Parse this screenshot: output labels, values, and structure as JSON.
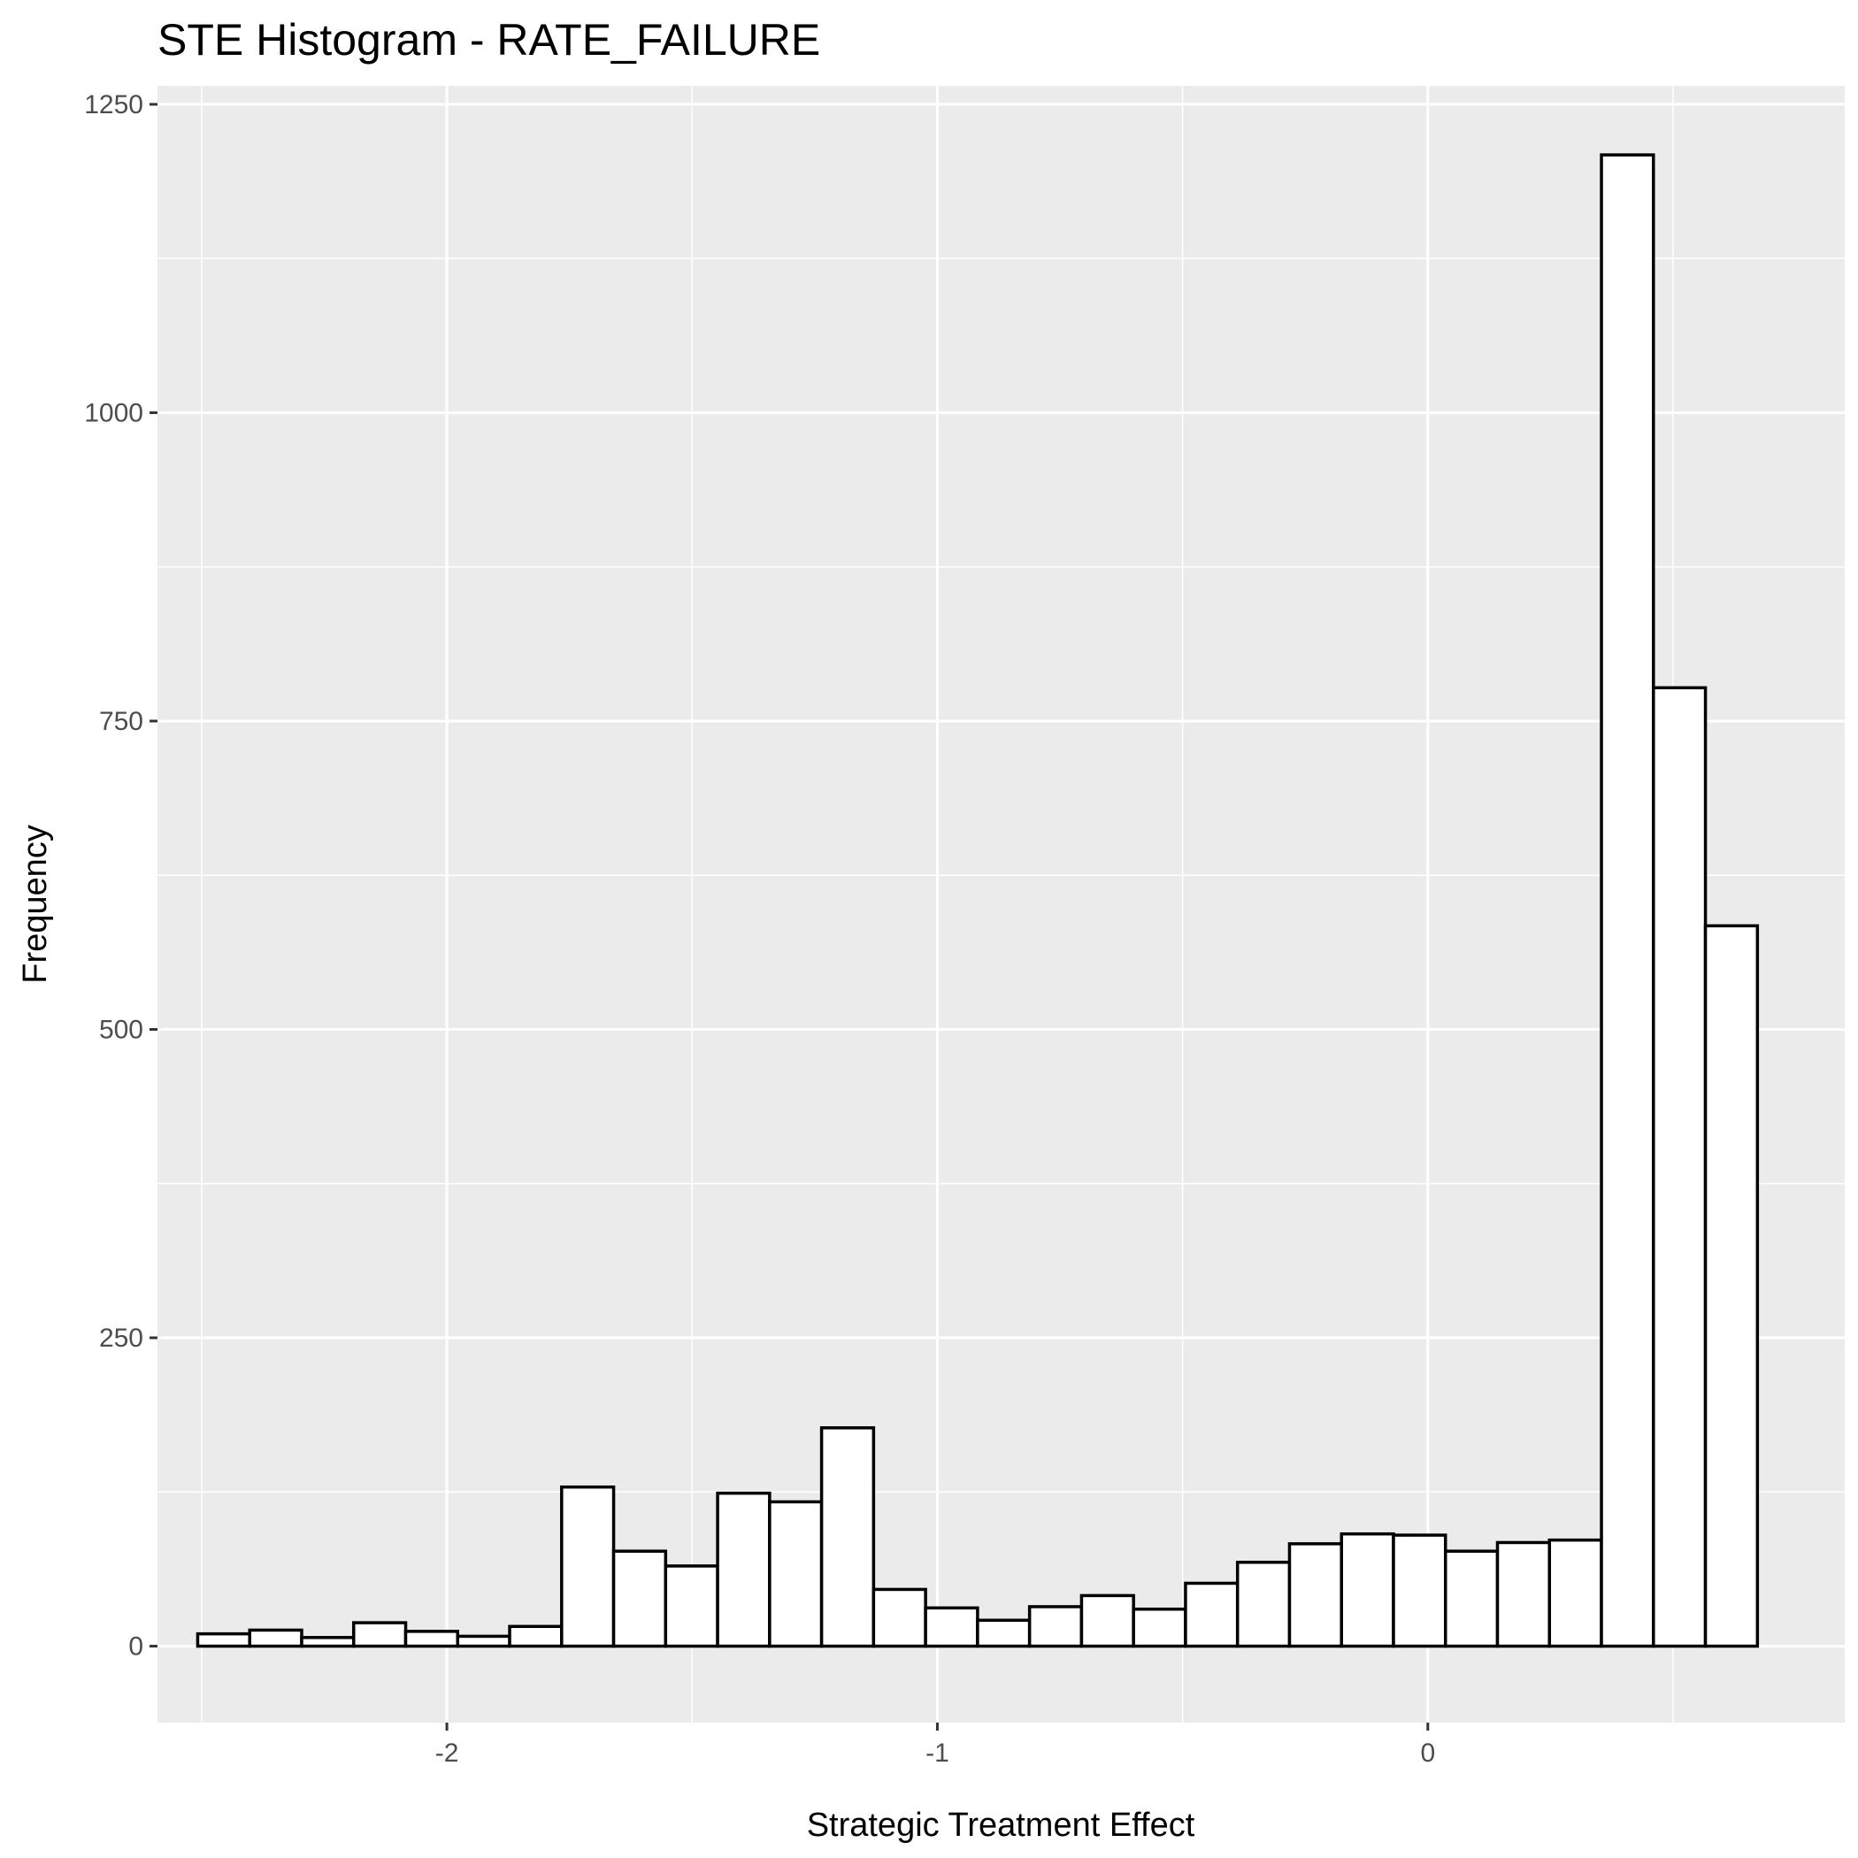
{
  "chart_data": {
    "type": "bar",
    "subtype": "histogram",
    "title": "STE Histogram -  RATE_FAILURE",
    "xlabel": "Strategic Treatment Effect",
    "ylabel": "Frequency",
    "xlim": [
      -2.59,
      0.85
    ],
    "ylim": [
      -62,
      1265
    ],
    "x_ticks": [
      -2,
      -1,
      0
    ],
    "x_tick_labels": [
      "-2",
      "-1",
      "0"
    ],
    "y_ticks": [
      0,
      250,
      500,
      750,
      1000,
      1250
    ],
    "y_tick_labels": [
      "0",
      "250",
      "500",
      "750",
      "1000",
      "1250"
    ],
    "grid": true,
    "background": "#ebebeb",
    "bar_fill": "#ffffff",
    "bar_outline": "#000000",
    "bin_edges": [
      -2.508,
      -2.402,
      -2.296,
      -2.19,
      -2.084,
      -1.978,
      -1.872,
      -1.766,
      -1.66,
      -1.554,
      -1.448,
      -1.342,
      -1.236,
      -1.13,
      -1.024,
      -0.918,
      -0.812,
      -0.706,
      -0.6,
      -0.494,
      -0.388,
      -0.282,
      -0.176,
      -0.07,
      0.036,
      0.142,
      0.248,
      0.354,
      0.46,
      0.566,
      0.672
    ],
    "values": [
      10,
      13,
      7,
      19,
      12,
      8,
      16,
      129,
      77,
      65,
      124,
      117,
      177,
      46,
      31,
      21,
      32,
      41,
      30,
      51,
      68,
      83,
      91,
      90,
      77,
      84,
      86,
      1209,
      777,
      584
    ]
  }
}
